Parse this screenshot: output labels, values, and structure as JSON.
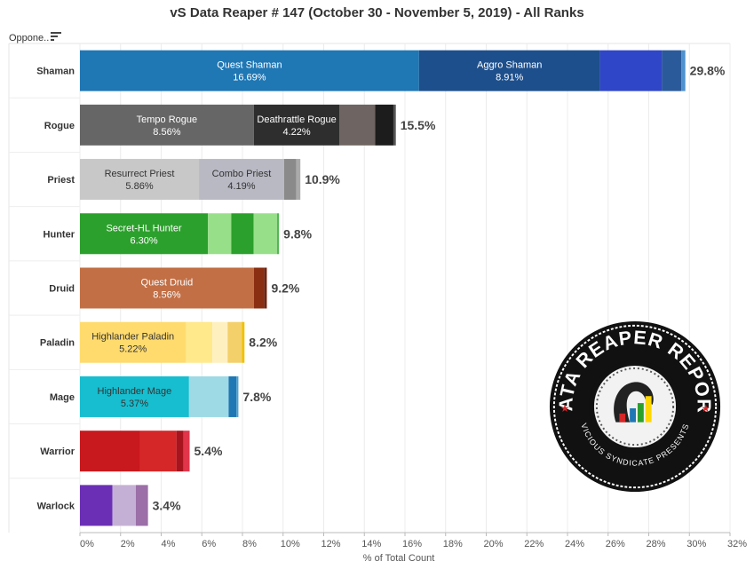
{
  "header": {
    "title": "vS Data Reaper # 147 (October 30 - November 5, 2019) - All Ranks",
    "column_label": "Oppone..",
    "sort_icon": "sort-descending-icon"
  },
  "logo": {
    "text_top": "DATA REAPER REPORT",
    "text_bottom": "VICIOUS SYNDICATE PRESENTS"
  },
  "chart_data": {
    "type": "bar",
    "orientation": "horizontal",
    "stacked": true,
    "title": "vS Data Reaper # 147 (October 30 - November 5, 2019) - All Ranks",
    "xlabel": "% of Total Count",
    "xlim": [
      0,
      32
    ],
    "xticks": [
      "0%",
      "2%",
      "4%",
      "6%",
      "8%",
      "10%",
      "12%",
      "14%",
      "16%",
      "18%",
      "20%",
      "22%",
      "24%",
      "26%",
      "28%",
      "30%",
      "32%"
    ],
    "xtick_values": [
      0,
      2,
      4,
      6,
      8,
      10,
      12,
      14,
      16,
      18,
      20,
      22,
      24,
      26,
      28,
      30,
      32
    ],
    "grid": true,
    "categories": [
      {
        "name": "Shaman",
        "total": "29.8%",
        "segments": [
          {
            "name": "Quest Shaman",
            "label": "16.69%",
            "value": 16.69,
            "color": "#1f77b4",
            "text_color": "#ffffff"
          },
          {
            "name": "Aggro Shaman",
            "label": "8.91%",
            "value": 8.91,
            "color": "#1d4f8c",
            "text_color": "#ffffff"
          },
          {
            "value": 3.05,
            "color": "#3046c8"
          },
          {
            "value": 0.95,
            "color": "#2a5a9a"
          },
          {
            "value": 0.2,
            "color": "#4e91cc"
          }
        ]
      },
      {
        "name": "Rogue",
        "total": "15.5%",
        "segments": [
          {
            "name": "Tempo Rogue",
            "label": "8.56%",
            "value": 8.56,
            "color": "#666666",
            "text_color": "#ffffff"
          },
          {
            "name": "Deathrattle Rogue",
            "label": "4.22%",
            "value": 4.22,
            "color": "#2e2e2e",
            "text_color": "#ffffff"
          },
          {
            "value": 1.75,
            "color": "#6e6461"
          },
          {
            "value": 0.9,
            "color": "#1c1c1c"
          },
          {
            "value": 0.12,
            "color": "#555555"
          }
        ]
      },
      {
        "name": "Priest",
        "total": "10.9%",
        "segments": [
          {
            "name": "Resurrect Priest",
            "label": "5.86%",
            "value": 5.86,
            "color": "#c8c8c8",
            "text_color": "#333333"
          },
          {
            "name": "Combo Priest",
            "label": "4.19%",
            "value": 4.19,
            "color": "#b9b9c4",
            "text_color": "#333333"
          },
          {
            "value": 0.6,
            "color": "#8a8a8a"
          },
          {
            "value": 0.2,
            "color": "#aaaaaa"
          }
        ]
      },
      {
        "name": "Hunter",
        "total": "9.8%",
        "segments": [
          {
            "name": "Secret-HL Hunter",
            "label": "6.30%",
            "value": 6.3,
            "color": "#2ca02c",
            "text_color": "#ffffff"
          },
          {
            "value": 1.15,
            "color": "#98df8a"
          },
          {
            "value": 1.1,
            "color": "#2ca02c"
          },
          {
            "value": 1.15,
            "color": "#98df8a"
          },
          {
            "value": 0.1,
            "color": "#56b556"
          }
        ]
      },
      {
        "name": "Druid",
        "total": "9.2%",
        "segments": [
          {
            "name": "Quest Druid",
            "label": "8.56%",
            "value": 8.56,
            "color": "#c26f45",
            "text_color": "#ffffff"
          },
          {
            "value": 0.5,
            "color": "#8b2f12"
          },
          {
            "value": 0.14,
            "color": "#6e2410"
          }
        ]
      },
      {
        "name": "Paladin",
        "total": "8.2%",
        "segments": [
          {
            "name": "Highlander Paladin",
            "label": "5.22%",
            "value": 5.22,
            "color": "#ffdb6e",
            "text_color": "#333333"
          },
          {
            "value": 1.3,
            "color": "#ffe98a"
          },
          {
            "value": 0.75,
            "color": "#fff0bf"
          },
          {
            "value": 0.7,
            "color": "#f4d06a"
          },
          {
            "value": 0.13,
            "color": "#f0c000"
          }
        ]
      },
      {
        "name": "Mage",
        "total": "7.8%",
        "segments": [
          {
            "name": "Highlander Mage",
            "label": "5.37%",
            "value": 5.37,
            "color": "#17becf",
            "text_color": "#333333"
          },
          {
            "value": 1.95,
            "color": "#9edae5"
          },
          {
            "value": 0.38,
            "color": "#1f77b4"
          },
          {
            "value": 0.1,
            "color": "#4aa0d0"
          }
        ]
      },
      {
        "name": "Warrior",
        "total": "5.4%",
        "segments": [
          {
            "value": 2.95,
            "color": "#c8191e"
          },
          {
            "value": 1.8,
            "color": "#d62728"
          },
          {
            "value": 0.35,
            "color": "#a8141e"
          },
          {
            "value": 0.3,
            "color": "#e0354a"
          }
        ]
      },
      {
        "name": "Warlock",
        "total": "3.4%",
        "segments": [
          {
            "value": 1.6,
            "color": "#6b2fb5"
          },
          {
            "value": 1.15,
            "color": "#c5b0d5"
          },
          {
            "value": 0.6,
            "color": "#9c6fa8"
          }
        ]
      }
    ]
  }
}
